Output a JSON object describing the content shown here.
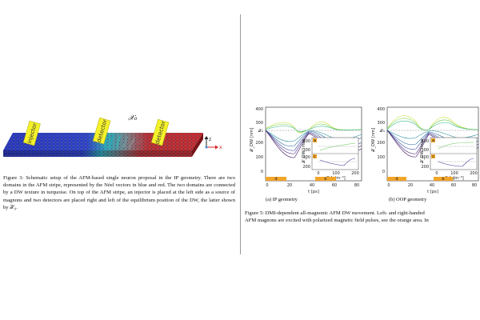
{
  "left": {
    "figure3": {
      "label_injector": "injector",
      "label_detector_left": "detector",
      "label_detector_right": "detector",
      "label_chi0": "𝒳₀",
      "axis_z": "z",
      "axis_x": "x",
      "caption_label": "Figure 3:",
      "caption_text": "Schematic setup of the AFM-based single neuron proposal in the IP geometry. There are two domains in the AFM stripe, represented by the Néel vectors in blue and red. The two domains are connected by a DW texture in turquoise. On top of the AFM stripe, an injector is placed at the left side as a source of magnons and two detectors are placed right and left of the equilibrium position of the DW, the latter shown by 𝒳₀."
    }
  },
  "right": {
    "figure5": {
      "panel_a": {
        "y_axis_label": "𝒳_DW [nm]",
        "y_ticks": [
          "400",
          "300",
          "200",
          "100",
          "0"
        ],
        "chi0_tick": "𝒳₀",
        "x_axis_label": "t [ps]",
        "x_ticks": [
          "0",
          "20",
          "40",
          "60",
          "80"
        ],
        "inset_top_label": "a",
        "inset_bottom_label": "c",
        "inset_top_y_ticks": [
          "400",
          "300"
        ],
        "inset_bottom_y_ticks": [
          "300",
          "200"
        ],
        "inset_x_ticks": [
          "0",
          "100",
          "200"
        ],
        "inset_x_label": "D [μJm⁻²]",
        "inset_y_label": "𝒳_DW^max",
        "bar_left_label": "d",
        "bar_right_label": "b",
        "subcaption": "(a) IP geometry"
      },
      "panel_b": {
        "y_axis_label": "𝒳_DW [nm]",
        "y_ticks": [
          "400",
          "300",
          "200",
          "100",
          "0"
        ],
        "chi0_tick": "𝒳₀",
        "x_axis_label": "t [ps]",
        "x_ticks": [
          "0",
          "20",
          "40",
          "60",
          "80"
        ],
        "inset_top_label": "a",
        "inset_bottom_label": "c",
        "inset_top_y_ticks": [
          "400",
          "300"
        ],
        "inset_bottom_y_ticks": [
          "300",
          "200"
        ],
        "inset_x_ticks": [
          "0",
          "100",
          "200"
        ],
        "inset_x_label": "D [μJm⁻²]",
        "inset_y_label": "𝒳_DW^max",
        "bar_left_label": "d",
        "bar_right_label": "b",
        "subcaption": "(b) OOP geometry"
      },
      "caption_line1": "Figure 5: DMI-dependent all-magnonic AFM DW movement. Left- and right-handed",
      "caption_line2": "AFM magnons are excited with polarized magnetic field pulses, see the orange area. In"
    }
  },
  "colors": {
    "domain_blue": "#1f2fb0",
    "domain_red": "#c0262b",
    "dw_turquoise": "#2aa6b6",
    "electrode_yellow": "#f5f22a",
    "pulse_orange": "#f2a52a"
  }
}
